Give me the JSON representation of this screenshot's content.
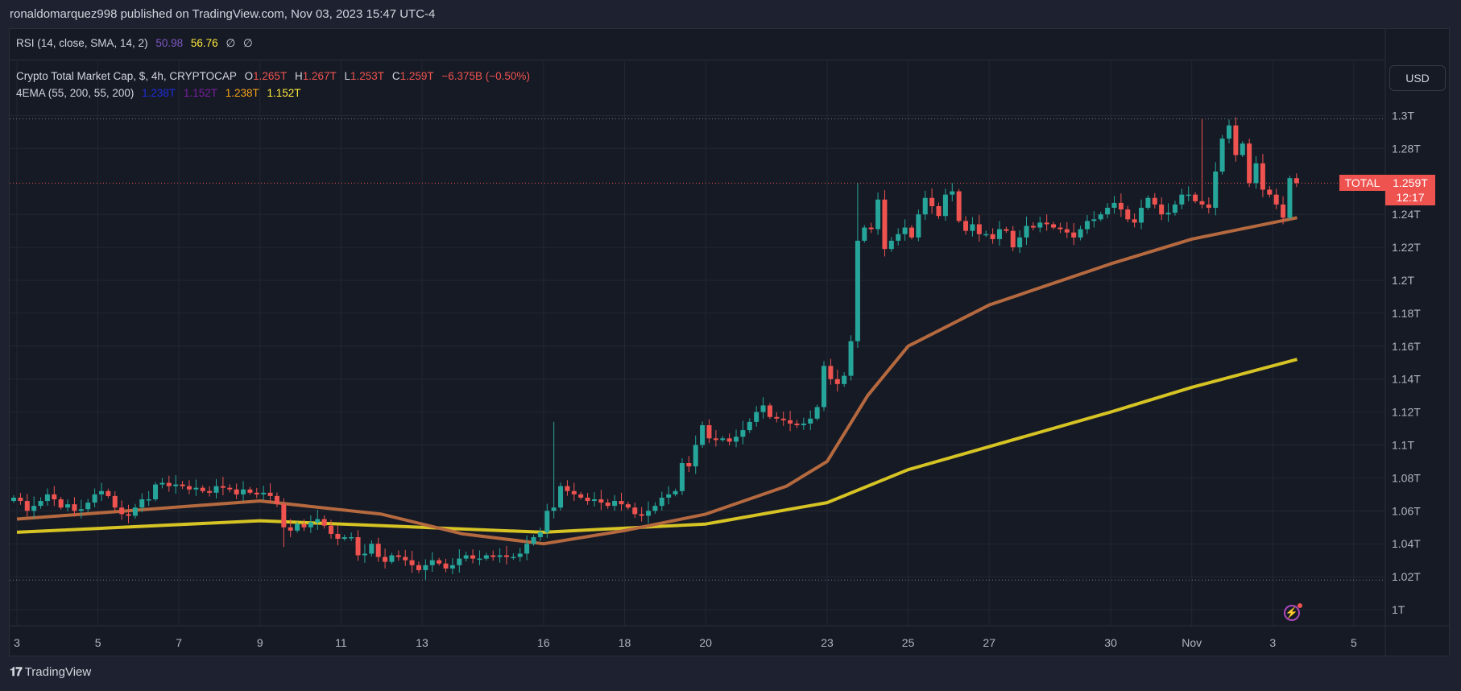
{
  "header": {
    "published": "ronaldomarquez998 published on TradingView.com, Nov 03, 2023 15:47 UTC-4"
  },
  "rsi_legend": {
    "title": "RSI (14, close, SMA, 14, 2)",
    "value1": "50.98",
    "value2": "56.76",
    "value3": "∅",
    "value4": "∅",
    "color1": "#7e57c2",
    "color2": "#ffeb3b"
  },
  "main_legend": {
    "symbol": "Crypto Total Market Cap, $, 4h, CRYPTOCAP",
    "o_label": "O",
    "o": "1.265T",
    "h_label": "H",
    "h": "1.267T",
    "l_label": "L",
    "l": "1.253T",
    "c_label": "C",
    "c": "1.259T",
    "change": "−6.375B (−0.50%)"
  },
  "ema_legend": {
    "title": "4EMA (55, 200, 55, 200)",
    "v1": "1.238T",
    "v2": "1.152T",
    "v3": "1.238T",
    "v4": "1.152T",
    "c1": "#1e2ddb",
    "c2": "#7b1fa2",
    "c3": "#f7a21b",
    "c4": "#ffeb3b"
  },
  "currency_button": "USD",
  "last_price": {
    "symbol": "TOTAL",
    "price": "1.259T",
    "countdown": "12:17",
    "color": "#ef5350"
  },
  "footer": {
    "logo": "TradingView"
  },
  "icons": {
    "alert": "lightning-icon"
  },
  "colors": {
    "up": "#26a69a",
    "down": "#ef5350",
    "ema55": "#b5693f",
    "ema200": "#d6c324",
    "background": "#161a25"
  },
  "chart_data": {
    "type": "candlestick",
    "interval": "4h",
    "start": "2023-10-03 00:00",
    "price_axis": [
      {
        "label": "1.3T",
        "value": 1.3
      },
      {
        "label": "1.28T",
        "value": 1.28
      },
      {
        "label": "1.24T",
        "value": 1.24
      },
      {
        "label": "1.22T",
        "value": 1.22
      },
      {
        "label": "1.2T",
        "value": 1.2
      },
      {
        "label": "1.18T",
        "value": 1.18
      },
      {
        "label": "1.16T",
        "value": 1.16
      },
      {
        "label": "1.14T",
        "value": 1.14
      },
      {
        "label": "1.12T",
        "value": 1.12
      },
      {
        "label": "1.1T",
        "value": 1.1
      },
      {
        "label": "1.08T",
        "value": 1.08
      },
      {
        "label": "1.06T",
        "value": 1.06
      },
      {
        "label": "1.04T",
        "value": 1.04
      },
      {
        "label": "1.02T",
        "value": 1.02
      },
      {
        "label": "1T",
        "value": 1.0
      }
    ],
    "time_axis": [
      {
        "label": "3",
        "day": 0
      },
      {
        "label": "5",
        "day": 2
      },
      {
        "label": "7",
        "day": 4
      },
      {
        "label": "9",
        "day": 6
      },
      {
        "label": "11",
        "day": 8
      },
      {
        "label": "13",
        "day": 10
      },
      {
        "label": "16",
        "day": 13
      },
      {
        "label": "18",
        "day": 15
      },
      {
        "label": "20",
        "day": 17
      },
      {
        "label": "23",
        "day": 20
      },
      {
        "label": "25",
        "day": 22
      },
      {
        "label": "27",
        "day": 24
      },
      {
        "label": "30",
        "day": 27
      },
      {
        "label": "Nov",
        "day": 29
      },
      {
        "label": "3",
        "day": 31
      },
      {
        "label": "5",
        "day": 33
      }
    ],
    "first_open": 1.066,
    "close": [
      1.068,
      1.066,
      1.06,
      1.063,
      1.066,
      1.07,
      1.067,
      1.062,
      1.064,
      1.06,
      1.061,
      1.065,
      1.07,
      1.072,
      1.069,
      1.062,
      1.058,
      1.057,
      1.062,
      1.067,
      1.067,
      1.076,
      1.077,
      1.075,
      1.076,
      1.075,
      1.073,
      1.074,
      1.072,
      1.071,
      1.075,
      1.074,
      1.073,
      1.07,
      1.073,
      1.071,
      1.07,
      1.071,
      1.069,
      1.064,
      1.05,
      1.048,
      1.052,
      1.05,
      1.053,
      1.055,
      1.051,
      1.046,
      1.043,
      1.044,
      1.044,
      1.033,
      1.034,
      1.04,
      1.032,
      1.029,
      1.033,
      1.032,
      1.03,
      1.027,
      1.024,
      1.027,
      1.03,
      1.028,
      1.025,
      1.027,
      1.031,
      1.033,
      1.031,
      1.031,
      1.033,
      1.032,
      1.033,
      1.032,
      1.032,
      1.034,
      1.04,
      1.044,
      1.047,
      1.06,
      1.062,
      1.075,
      1.072,
      1.07,
      1.068,
      1.066,
      1.067,
      1.065,
      1.063,
      1.066,
      1.064,
      1.062,
      1.058,
      1.057,
      1.06,
      1.063,
      1.068,
      1.07,
      1.072,
      1.089,
      1.087,
      1.1,
      1.112,
      1.104,
      1.103,
      1.104,
      1.102,
      1.105,
      1.109,
      1.114,
      1.12,
      1.124,
      1.117,
      1.116,
      1.115,
      1.113,
      1.112,
      1.113,
      1.116,
      1.123,
      1.148,
      1.14,
      1.137,
      1.142,
      1.163,
      1.224,
      1.232,
      1.231,
      1.249,
      1.219,
      1.224,
      1.228,
      1.232,
      1.226,
      1.24,
      1.25,
      1.245,
      1.239,
      1.252,
      1.254,
      1.236,
      1.23,
      1.234,
      1.228,
      1.228,
      1.225,
      1.231,
      1.23,
      1.22,
      1.226,
      1.233,
      1.232,
      1.235,
      1.234,
      1.232,
      1.231,
      1.229,
      1.226,
      1.231,
      1.236,
      1.237,
      1.24,
      1.244,
      1.247,
      1.243,
      1.237,
      1.235,
      1.244,
      1.25,
      1.246,
      1.24,
      1.241,
      1.246,
      1.252,
      1.252,
      1.248,
      1.246,
      1.244,
      1.266,
      1.286,
      1.294,
      1.276,
      1.283,
      1.259,
      1.271,
      1.255,
      1.252,
      1.246,
      1.238,
      1.262,
      1.259
    ],
    "high_overrides": [
      {
        "index": 80,
        "high": 1.114
      },
      {
        "index": 125,
        "high": 1.259
      },
      {
        "index": 176,
        "high": 1.298
      }
    ],
    "low_overrides": [
      {
        "index": 61,
        "low": 1.018
      },
      {
        "index": 40,
        "low": 1.038
      }
    ],
    "ema55": [
      [
        0,
        1.055
      ],
      [
        6,
        1.066
      ],
      [
        9,
        1.058
      ],
      [
        11,
        1.046
      ],
      [
        13,
        1.04
      ],
      [
        15,
        1.048
      ],
      [
        17,
        1.058
      ],
      [
        19,
        1.075
      ],
      [
        20,
        1.09
      ],
      [
        21,
        1.13
      ],
      [
        22,
        1.16
      ],
      [
        24,
        1.185
      ],
      [
        27,
        1.21
      ],
      [
        29,
        1.225
      ],
      [
        31.6,
        1.238
      ]
    ],
    "ema200": [
      [
        0,
        1.047
      ],
      [
        6,
        1.054
      ],
      [
        13,
        1.047
      ],
      [
        17,
        1.052
      ],
      [
        20,
        1.065
      ],
      [
        22,
        1.085
      ],
      [
        27,
        1.12
      ],
      [
        29,
        1.135
      ],
      [
        31.6,
        1.152
      ]
    ],
    "range_high_marker": 1.298,
    "range_low_marker": 1.018,
    "last_close": 1.259,
    "ylim": [
      0.985,
      1.33
    ]
  }
}
